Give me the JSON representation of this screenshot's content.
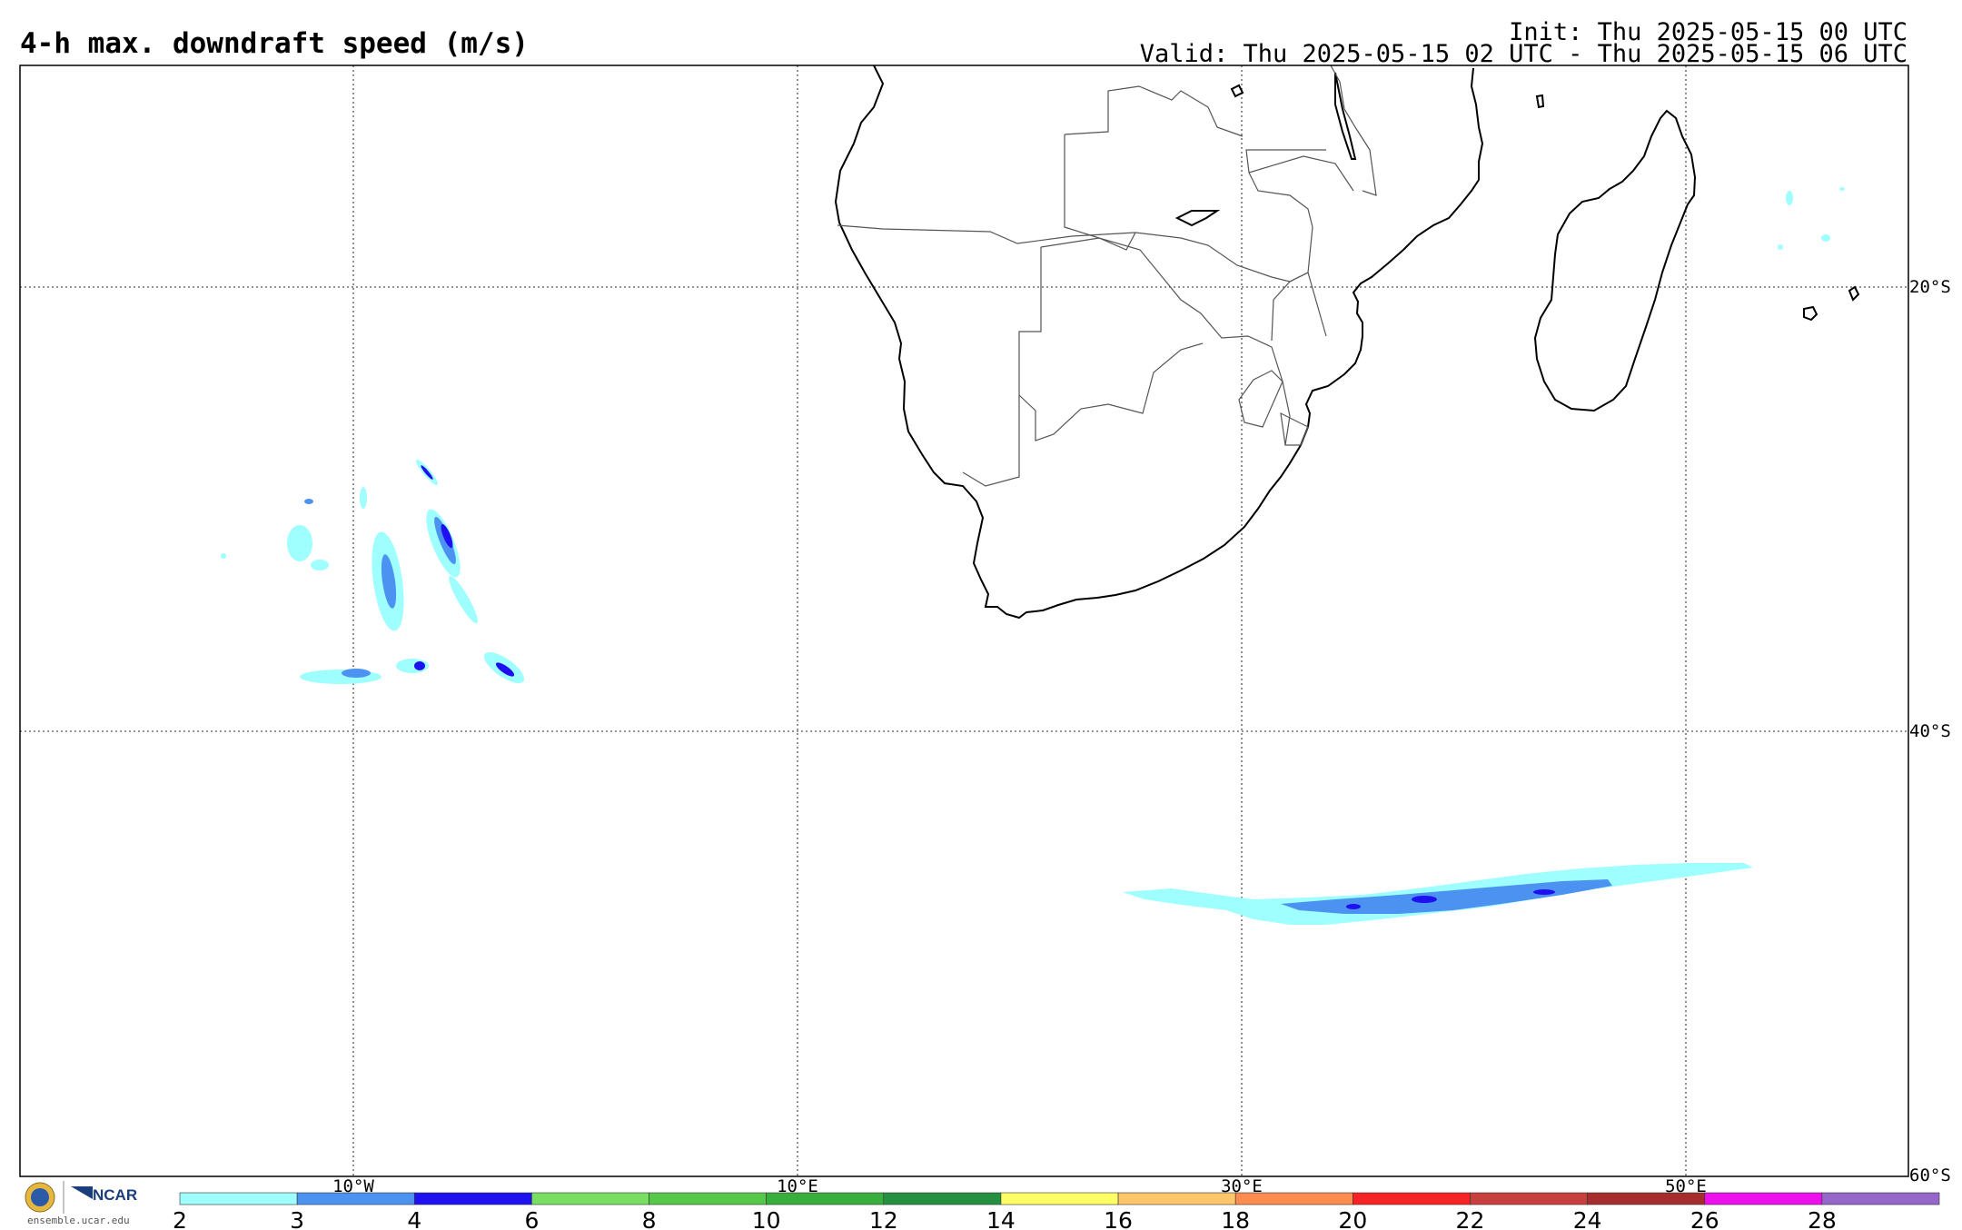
{
  "header": {
    "title": "4-h max. downdraft speed (m/s)",
    "init": "Init: Thu 2025-05-15 00 UTC",
    "valid": "Valid: Thu 2025-05-15 02 UTC - Thu 2025-05-15 06 UTC"
  },
  "map": {
    "lon_labels": [
      "10°W",
      "10°E",
      "30°E",
      "50°E"
    ],
    "lat_labels": [
      "20°S",
      "40°S",
      "60°S"
    ],
    "gridlines": "dotted",
    "regions": [
      "Southern Africa",
      "Madagascar",
      "South Atlantic Ocean",
      "Southern Indian Ocean"
    ]
  },
  "colorbar": {
    "ticks": [
      "2",
      "3",
      "4",
      "6",
      "8",
      "10",
      "12",
      "14",
      "16",
      "18",
      "20",
      "22",
      "24",
      "26",
      "28"
    ],
    "colors": [
      "#9ffefe",
      "#4c93f1",
      "#1f10ef",
      "#7ade63",
      "#56c94b",
      "#38ae3d",
      "#249142",
      "#fdfd66",
      "#fdc66a",
      "#fe8c4f",
      "#f52326",
      "#c8403e",
      "#a52d2d",
      "#ec10ec",
      "#9766cb"
    ]
  },
  "logo": {
    "org": "NCAR",
    "url": "ensemble.ucar.edu"
  }
}
